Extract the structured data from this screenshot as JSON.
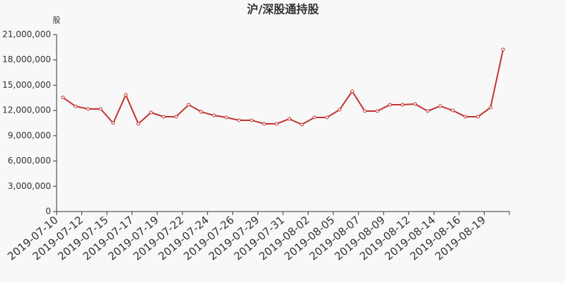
{
  "chart_data": {
    "type": "line",
    "title": "沪/深股通持股",
    "y_unit": "股",
    "categories": [
      "2019-07-10",
      null,
      "2019-07-12",
      null,
      "2019-07-15",
      null,
      "2019-07-17",
      null,
      "2019-07-19",
      null,
      "2019-07-22",
      null,
      "2019-07-24",
      null,
      "2019-07-26",
      null,
      "2019-07-29",
      null,
      "2019-07-31",
      null,
      "2019-08-02",
      null,
      "2019-08-05",
      null,
      "2019-08-07",
      null,
      "2019-08-09",
      null,
      "2019-08-12",
      null,
      "2019-08-14",
      null,
      "2019-08-16",
      null,
      "2019-08-19",
      null
    ],
    "series": [
      {
        "name": "沪/深股通持股",
        "color": "#c23531",
        "values": [
          13550000,
          12500000,
          12180000,
          12180000,
          10500000,
          13860000,
          10420000,
          11760000,
          11260000,
          11260000,
          12680000,
          11840000,
          11420000,
          11170000,
          10840000,
          10840000,
          10420000,
          10420000,
          11000000,
          10330000,
          11170000,
          11170000,
          12100000,
          14280000,
          11930000,
          11930000,
          12680000,
          12680000,
          12770000,
          11930000,
          12520000,
          12000000,
          11260000,
          11260000,
          12350000,
          19240000
        ]
      }
    ],
    "ylim": [
      0,
      21000000
    ],
    "yticks": [
      0,
      {
        "value": 3000000,
        "label": "3,000,000"
      },
      {
        "value": 6000000,
        "label": "6,000,000"
      },
      {
        "value": 9000000,
        "label": "9,000,000"
      },
      {
        "value": 12000000,
        "label": "12,000,000"
      },
      {
        "value": 15000000,
        "label": "15,000,000"
      },
      {
        "value": 18000000,
        "label": "18,000,000"
      },
      {
        "value": 21000000,
        "label": "21,000,000"
      }
    ]
  }
}
